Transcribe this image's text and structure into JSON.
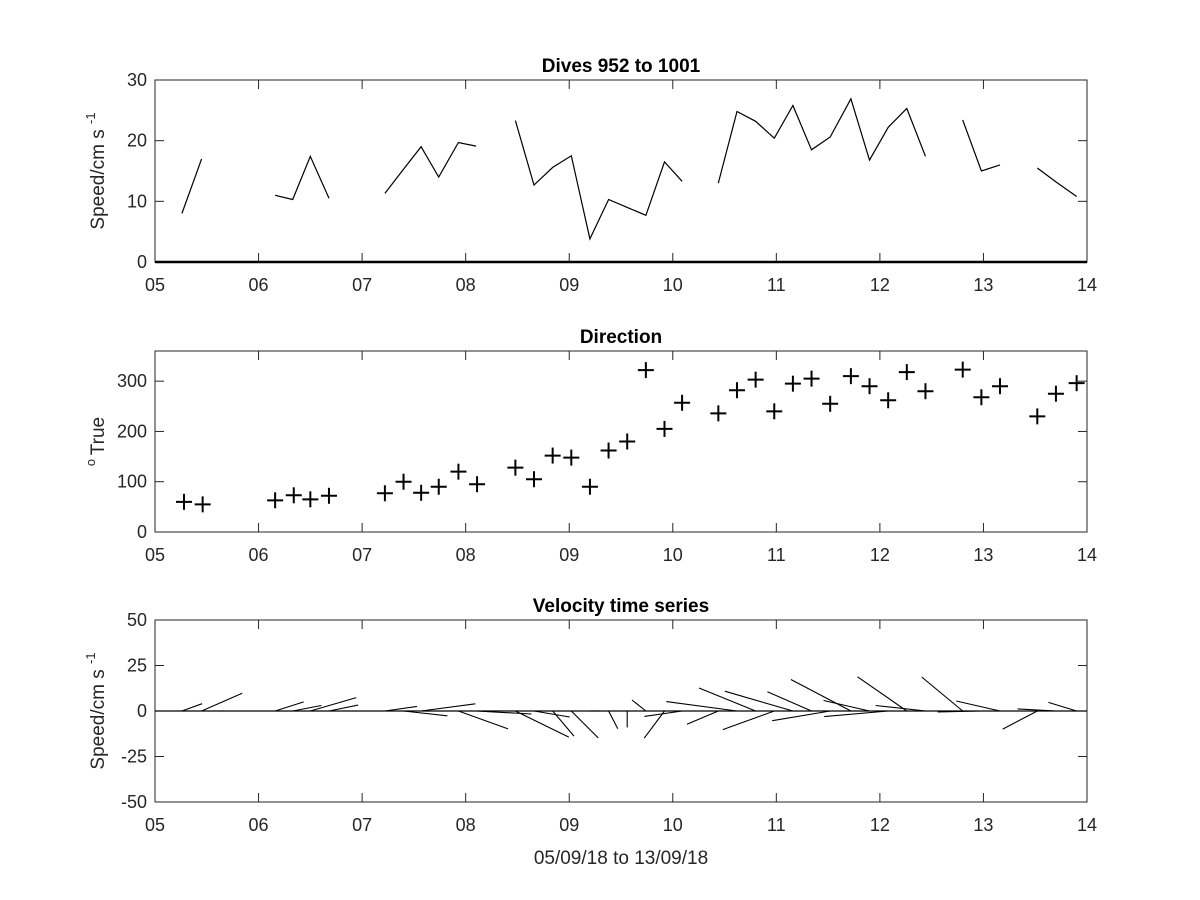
{
  "chart_data": [
    {
      "type": "line",
      "title": "Dives 952 to 1001",
      "ylabel": "Speed/cm s",
      "ylabel_sup": "-1",
      "xlabel": "",
      "xlim": [
        5,
        14
      ],
      "ylim": [
        0,
        30
      ],
      "xticks": [
        "05",
        "06",
        "07",
        "08",
        "09",
        "10",
        "11",
        "12",
        "13",
        "14"
      ],
      "yticks": [
        "0",
        "10",
        "20",
        "30"
      ],
      "segments": [
        [
          [
            5.26,
            8
          ],
          [
            5.45,
            17
          ]
        ],
        [
          [
            6.16,
            11
          ],
          [
            6.33,
            10.3
          ],
          [
            6.5,
            17.4
          ],
          [
            6.68,
            10.5
          ]
        ],
        [
          [
            7.22,
            11.3
          ],
          [
            7.4,
            15.3
          ],
          [
            7.57,
            19
          ],
          [
            7.74,
            14
          ],
          [
            7.93,
            19.7
          ],
          [
            8.1,
            19.1
          ]
        ],
        [
          [
            8.48,
            23.3
          ],
          [
            8.66,
            12.7
          ],
          [
            8.84,
            15.6
          ],
          [
            9.02,
            17.5
          ],
          [
            9.2,
            3.8
          ],
          [
            9.38,
            10.3
          ],
          [
            9.56,
            9
          ],
          [
            9.74,
            7.7
          ],
          [
            9.92,
            16.5
          ],
          [
            10.09,
            13.3
          ]
        ],
        [
          [
            10.44,
            13
          ],
          [
            10.62,
            24.8
          ],
          [
            10.8,
            23.2
          ],
          [
            10.98,
            20.4
          ],
          [
            11.16,
            25.8
          ],
          [
            11.34,
            18.5
          ],
          [
            11.52,
            20.6
          ],
          [
            11.72,
            26.9
          ],
          [
            11.9,
            16.8
          ],
          [
            12.08,
            22.2
          ],
          [
            12.26,
            25.3
          ],
          [
            12.44,
            17.4
          ]
        ],
        [
          [
            12.8,
            23.4
          ],
          [
            12.98,
            15
          ],
          [
            13.16,
            16
          ]
        ],
        [
          [
            13.52,
            15.5
          ],
          [
            13.7,
            13.2
          ],
          [
            13.9,
            10.8
          ]
        ]
      ]
    },
    {
      "type": "scatter",
      "title": "Direction",
      "ylabel": "True",
      "ylabel_sup": "o",
      "xlabel": "",
      "xlim": [
        5,
        14
      ],
      "ylim": [
        0,
        360
      ],
      "marker": "+",
      "xticks": [
        "05",
        "06",
        "07",
        "08",
        "09",
        "10",
        "11",
        "12",
        "13",
        "14"
      ],
      "yticks": [
        "0",
        "100",
        "200",
        "300"
      ],
      "x": [
        5.28,
        5.46,
        6.16,
        6.34,
        6.5,
        6.68,
        7.22,
        7.4,
        7.57,
        7.74,
        7.93,
        8.11,
        8.48,
        8.66,
        8.84,
        9.02,
        9.2,
        9.38,
        9.56,
        9.74,
        9.92,
        10.09,
        10.44,
        10.62,
        10.8,
        10.98,
        11.16,
        11.34,
        11.52,
        11.72,
        11.9,
        12.08,
        12.26,
        12.44,
        12.8,
        12.98,
        13.16,
        13.52,
        13.7,
        13.9
      ],
      "y": [
        60,
        55,
        63,
        73,
        65,
        72,
        77,
        100,
        78,
        90,
        120,
        95,
        128,
        105,
        152,
        148,
        90,
        162,
        180,
        322,
        205,
        257,
        236,
        282,
        303,
        240,
        295,
        305,
        255,
        310,
        290,
        262,
        318,
        280,
        323,
        268,
        290,
        230,
        275,
        296
      ]
    },
    {
      "type": "quiver",
      "title": "Velocity time series",
      "ylabel": "Speed/cm s",
      "ylabel_sup": "-1",
      "xlabel": "05/09/18 to 13/09/18",
      "xlim": [
        5,
        14
      ],
      "ylim": [
        -50,
        50
      ],
      "xticks": [
        "05",
        "06",
        "07",
        "08",
        "09",
        "10",
        "11",
        "12",
        "13",
        "14"
      ],
      "yticks": [
        "-50",
        "-25",
        "0",
        "25",
        "50"
      ],
      "x": [
        5.26,
        5.45,
        6.16,
        6.33,
        6.5,
        6.68,
        7.22,
        7.4,
        7.57,
        7.74,
        7.93,
        8.1,
        8.48,
        8.66,
        8.84,
        9.02,
        9.2,
        9.38,
        9.56,
        9.74,
        9.92,
        10.09,
        10.44,
        10.62,
        10.8,
        10.98,
        11.16,
        11.34,
        11.52,
        11.72,
        11.9,
        12.08,
        12.26,
        12.44,
        12.8,
        12.98,
        13.16,
        13.52,
        13.7,
        13.9
      ],
      "speed": [
        8,
        17,
        11,
        10.3,
        17.4,
        10.5,
        11.3,
        15.3,
        19,
        14,
        19.7,
        19.1,
        23.3,
        12.7,
        15.6,
        17.5,
        3.8,
        10.3,
        9,
        7.7,
        16.5,
        13.3,
        13,
        24.8,
        23.2,
        20.4,
        25.8,
        18.5,
        20.6,
        26.9,
        16.8,
        22.2,
        25.3,
        17.4,
        23.4,
        15,
        16,
        15.5,
        13.2,
        10.8
      ],
      "direction": [
        60,
        55,
        63,
        73,
        65,
        72,
        77,
        100,
        78,
        90,
        120,
        95,
        128,
        105,
        152,
        148,
        90,
        162,
        180,
        322,
        205,
        257,
        236,
        282,
        303,
        240,
        295,
        305,
        255,
        310,
        290,
        262,
        318,
        280,
        323,
        268,
        290,
        230,
        275,
        296
      ]
    }
  ]
}
